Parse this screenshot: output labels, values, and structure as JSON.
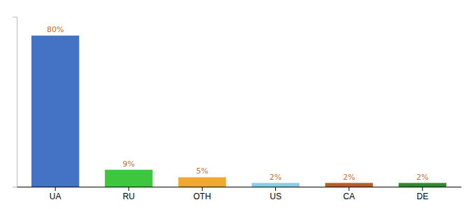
{
  "chart_data": {
    "type": "bar",
    "categories": [
      "UA",
      "RU",
      "OTH",
      "US",
      "CA",
      "DE"
    ],
    "values": [
      80,
      9,
      5,
      2,
      2,
      2
    ],
    "value_labels": [
      "80%",
      "9%",
      "5%",
      "2%",
      "2%",
      "2%"
    ],
    "colors": [
      "#4472c4",
      "#3fc63f",
      "#f0a830",
      "#87ceeb",
      "#b85c28",
      "#2e8b2e"
    ],
    "ylim": [
      0,
      90
    ],
    "data_labels": true,
    "tick_labels": "x"
  }
}
